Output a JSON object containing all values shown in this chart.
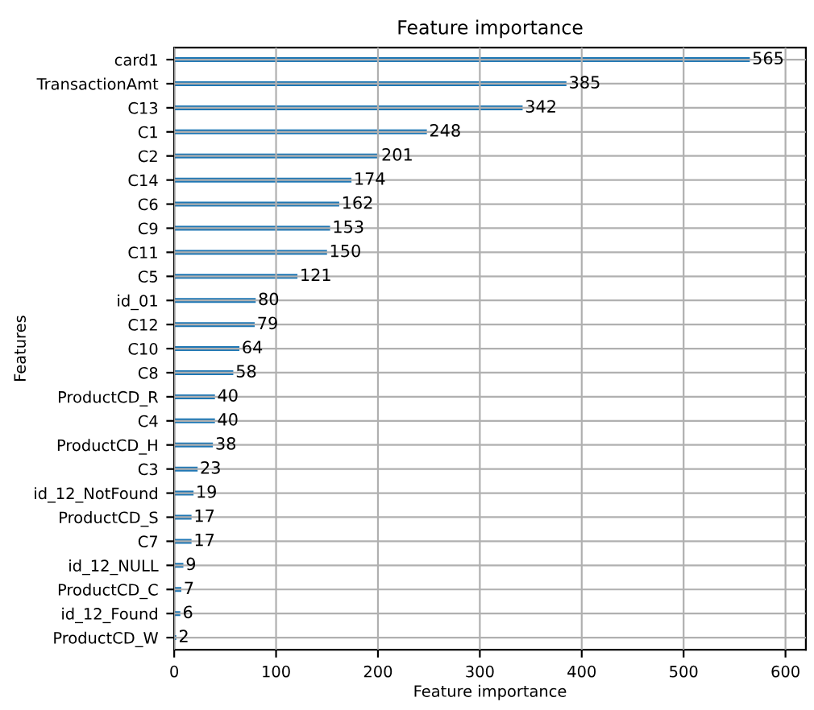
{
  "chart_data": {
    "type": "bar",
    "orientation": "horizontal",
    "title": "Feature importance",
    "xlabel": "Feature importance",
    "ylabel": "Features",
    "categories": [
      "card1",
      "TransactionAmt",
      "C13",
      "C1",
      "C2",
      "C14",
      "C6",
      "C9",
      "C11",
      "C5",
      "id_01",
      "C12",
      "C10",
      "C8",
      "ProductCD_R",
      "C4",
      "ProductCD_H",
      "C3",
      "id_12_NotFound",
      "ProductCD_S",
      "C7",
      "id_12_NULL",
      "ProductCD_C",
      "id_12_Found",
      "ProductCD_W"
    ],
    "values": [
      565,
      385,
      342,
      248,
      201,
      174,
      162,
      153,
      150,
      121,
      80,
      79,
      64,
      58,
      40,
      40,
      38,
      23,
      19,
      17,
      17,
      9,
      7,
      6,
      2
    ],
    "color": "#1f77b4",
    "data_labels": true,
    "grid": true,
    "xlim": [
      0,
      620
    ],
    "xticks": [
      0,
      100,
      200,
      300,
      400,
      500,
      600
    ]
  }
}
